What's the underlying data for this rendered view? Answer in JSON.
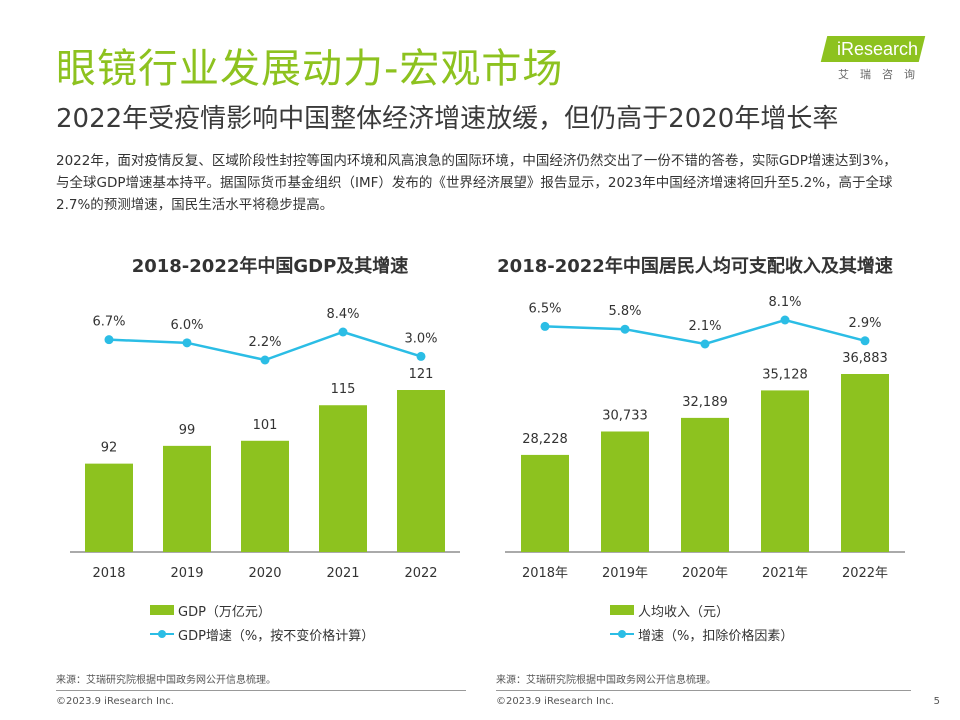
{
  "page": {
    "title": "眼镜行业发展动力-宏观市场",
    "subtitle": "2022年受疫情影响中国整体经济增速放缓，但仍高于2020年增长率",
    "body": "2022年，面对疫情反复、区域阶段性封控等国内环境和风高浪急的国际环境，中国经济仍然交出了一份不错的答卷，实际GDP增速达到3%，与全球GDP增速基本持平。据国际货币基金组织（IMF）发布的《世界经济展望》报告显示，2023年中国经济增速将回升至5.2%，高于全球2.7%的预测增速，国民生活水平将稳步提高。",
    "logo_text": "iResearch",
    "logo_cn": "艾瑞咨询",
    "page_number": "5"
  },
  "colors": {
    "accent": "#8dc21f",
    "bar": "#8dc21f",
    "line": "#2bbde5"
  },
  "chart_data": [
    {
      "type": "bar",
      "title": "2018-2022年中国GDP及其增速",
      "categories": [
        "2018",
        "2019",
        "2020",
        "2021",
        "2022"
      ],
      "series": [
        {
          "name": "GDP（万亿元）",
          "type": "bar",
          "values": [
            92,
            99,
            101,
            115,
            121
          ],
          "labels": [
            "92",
            "99",
            "101",
            "115",
            "121"
          ]
        },
        {
          "name": "GDP增速（%，按不变价格计算）",
          "type": "line",
          "values": [
            6.7,
            6.0,
            2.2,
            8.4,
            3.0
          ],
          "labels": [
            "6.7%",
            "6.0%",
            "2.2%",
            "8.4%",
            "3.0%"
          ]
        }
      ],
      "source": "来源：艾瑞研究院根据中国政务网公开信息梳理。",
      "copyright": "©2023.9 iResearch Inc."
    },
    {
      "type": "bar",
      "title": "2018-2022年中国居民人均可支配收入及其增速",
      "categories": [
        "2018年",
        "2019年",
        "2020年",
        "2021年",
        "2022年"
      ],
      "series": [
        {
          "name": "人均收入（元）",
          "type": "bar",
          "values": [
            28228,
            30733,
            32189,
            35128,
            36883
          ],
          "labels": [
            "28,228",
            "30,733",
            "32,189",
            "35,128",
            "36,883"
          ]
        },
        {
          "name": "增速（%，扣除价格因素）",
          "type": "line",
          "values": [
            6.5,
            5.8,
            2.1,
            8.1,
            2.9
          ],
          "labels": [
            "6.5%",
            "5.8%",
            "2.1%",
            "8.1%",
            "2.9%"
          ]
        }
      ],
      "source": "来源：艾瑞研究院根据中国政务网公开信息梳理。",
      "copyright": "©2023.9 iResearch Inc."
    }
  ]
}
